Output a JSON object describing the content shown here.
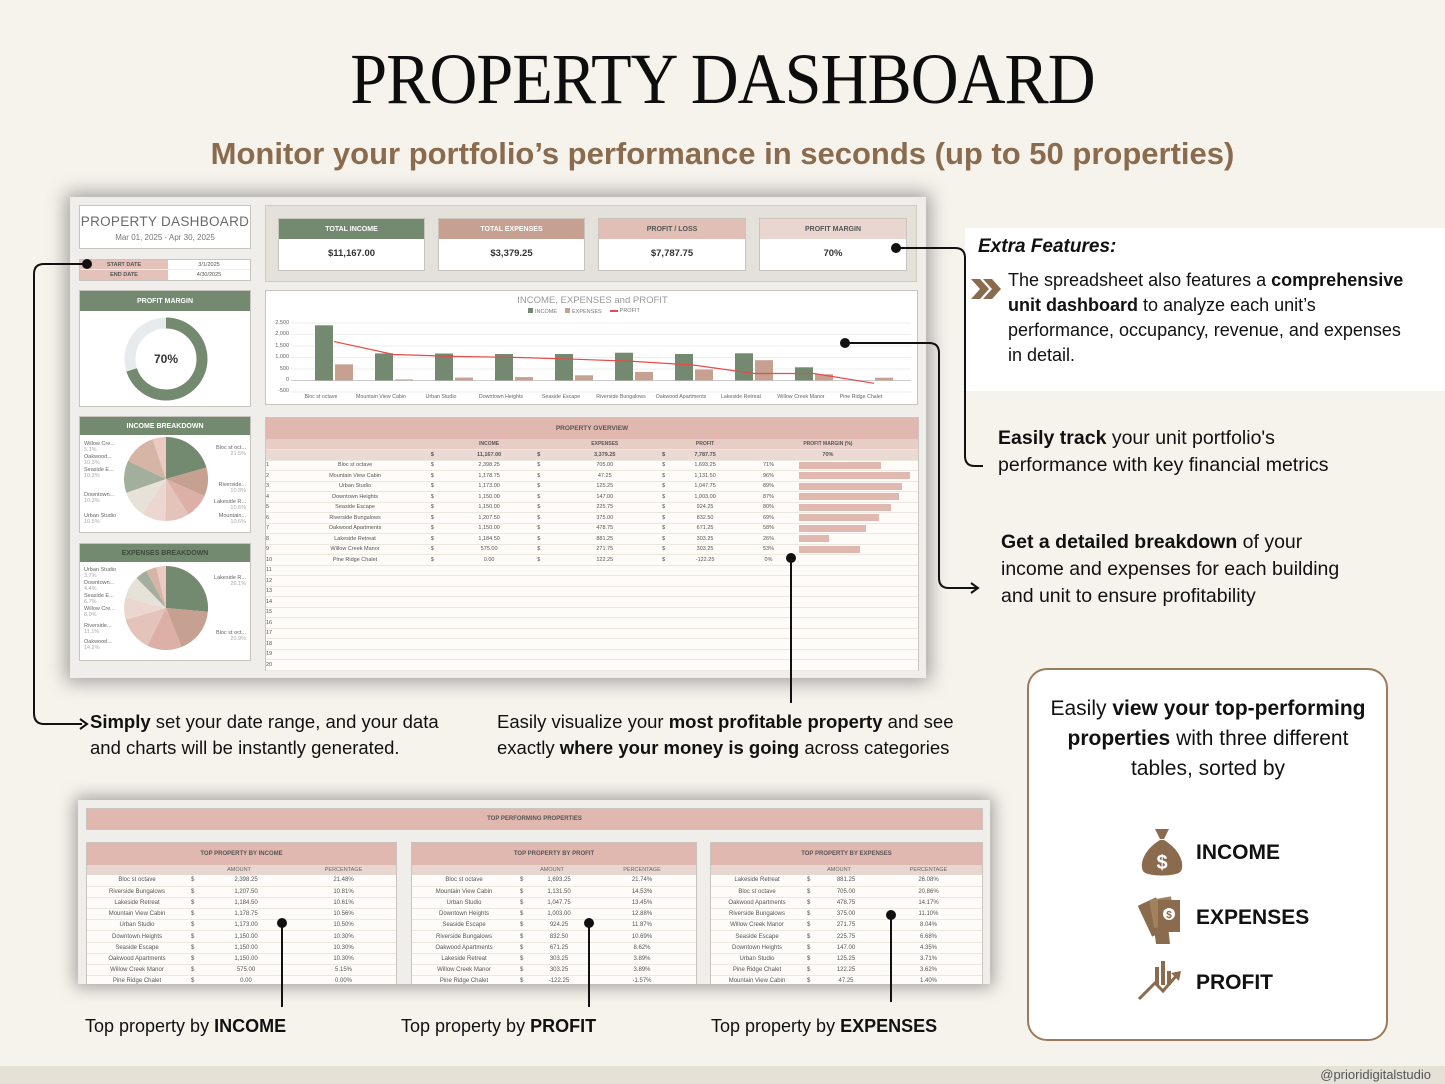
{
  "page": {
    "title": "PROPERTY DASHBOARD",
    "subtitle": "Monitor your portfolio’s performance in seconds (up to 50 properties)",
    "handle": "@prioridigitalstudio"
  },
  "sheet": {
    "title": "PROPERTY DASHBOARD",
    "date_range": "Mar 01, 2025 - Apr 30, 2025",
    "start_label": "START DATE",
    "start_value": "3/1/2025",
    "end_label": "END DATE",
    "end_value": "4/30/2025",
    "kpis": [
      {
        "label": "TOTAL INCOME",
        "value": "$11,167.00",
        "color": "#748a70"
      },
      {
        "label": "TOTAL EXPENSES",
        "value": "$3,379.25",
        "color": "#c6a090"
      },
      {
        "label": "PROFIT / LOSS",
        "value": "$7,787.75",
        "color": "#e2bfb6"
      },
      {
        "label": "PROFIT MARGIN",
        "value": "70%",
        "color": "#ead6d0"
      }
    ],
    "margin_card": {
      "label": "PROFIT MARGIN",
      "value": "70%"
    },
    "income_breakdown": {
      "label": "INCOME BREAKDOWN",
      "slices": [
        {
          "name": "Bloc st oct...",
          "pct": "21.5%"
        },
        {
          "name": "Riverside...",
          "pct": "10.8%"
        },
        {
          "name": "Lakeside R...",
          "pct": "10.6%"
        },
        {
          "name": "Mountain...",
          "pct": "10.6%"
        },
        {
          "name": "Urban Studio",
          "pct": "10.5%"
        },
        {
          "name": "Downtown...",
          "pct": "10.3%"
        },
        {
          "name": "Seaside E...",
          "pct": "10.3%"
        },
        {
          "name": "Oakwood...",
          "pct": "10.3%"
        },
        {
          "name": "Willow Cre...",
          "pct": "5.1%"
        }
      ]
    },
    "expenses_breakdown": {
      "label": "EXPENSES BREAKDOWN",
      "slices": [
        {
          "name": "Lakeside R...",
          "pct": "26.1%"
        },
        {
          "name": "Bloc st oct...",
          "pct": "20.9%"
        },
        {
          "name": "Oakwood...",
          "pct": "14.2%"
        },
        {
          "name": "Riverside...",
          "pct": "11.1%"
        },
        {
          "name": "Willow Cre...",
          "pct": "8.0%"
        },
        {
          "name": "Seaside E...",
          "pct": "6.7%"
        },
        {
          "name": "Downtown...",
          "pct": "4.4%"
        },
        {
          "name": "Urban Studio",
          "pct": "3.7%"
        }
      ]
    },
    "overview": {
      "label": "PROPERTY OVERVIEW",
      "headers": [
        "INCOME",
        "EXPENSES",
        "PROFIT",
        "PROFIT MARGIN (%)"
      ],
      "totals": {
        "income": "11,167.00",
        "expenses": "3,379.25",
        "profit": "7,787.75",
        "margin": "70%"
      },
      "currency": "$",
      "rows": [
        {
          "n": "1",
          "name": "Bloc st octave",
          "income": "2,398.25",
          "expenses": "705.00",
          "profit": "1,693.25",
          "margin": "71%",
          "bar": 71
        },
        {
          "n": "2",
          "name": "Mountain View Cabin",
          "income": "1,178.75",
          "expenses": "47.25",
          "profit": "1,131.50",
          "margin": "96%",
          "bar": 96
        },
        {
          "n": "3",
          "name": "Urban Studio",
          "income": "1,173.00",
          "expenses": "125.25",
          "profit": "1,047.75",
          "margin": "89%",
          "bar": 89
        },
        {
          "n": "4",
          "name": "Downtown Heights",
          "income": "1,150.00",
          "expenses": "147.00",
          "profit": "1,003.00",
          "margin": "87%",
          "bar": 87
        },
        {
          "n": "5",
          "name": "Seaside Escape",
          "income": "1,150.00",
          "expenses": "225.75",
          "profit": "924.25",
          "margin": "80%",
          "bar": 80
        },
        {
          "n": "6",
          "name": "Riverside Bungalows",
          "income": "1,207.50",
          "expenses": "375.00",
          "profit": "832.50",
          "margin": "69%",
          "bar": 69
        },
        {
          "n": "7",
          "name": "Oakwood Apartments",
          "income": "1,150.00",
          "expenses": "478.75",
          "profit": "671.25",
          "margin": "58%",
          "bar": 58
        },
        {
          "n": "8",
          "name": "Lakeside Retreat",
          "income": "1,184.50",
          "expenses": "881.25",
          "profit": "303.25",
          "margin": "26%",
          "bar": 26
        },
        {
          "n": "9",
          "name": "Willow Creek Manor",
          "income": "575.00",
          "expenses": "271.75",
          "profit": "303.25",
          "margin": "53%",
          "bar": 53
        },
        {
          "n": "10",
          "name": "Pine Ridge Chalet",
          "income": "0.00",
          "expenses": "122.25",
          "profit": "-122.25",
          "margin": "0%",
          "bar": 0
        }
      ],
      "empty_rows": [
        "11",
        "12",
        "13",
        "14",
        "15",
        "16",
        "17",
        "18",
        "19",
        "20"
      ]
    }
  },
  "chart_data": {
    "type": "bar",
    "title": "INCOME, EXPENSES and PROFIT",
    "categories": [
      "Bloc st octave",
      "Mountain View Cabin",
      "Urban Studio",
      "Downtown Heights",
      "Seaside Escape",
      "Riverside Bungalows",
      "Oakwood Apartments",
      "Lakeside Retreat",
      "Willow Creek Manor",
      "Pine Ridge Chalet"
    ],
    "series": [
      {
        "name": "INCOME",
        "type": "bar",
        "color": "#748a70",
        "values": [
          2398.25,
          1178.75,
          1173.0,
          1150.0,
          1150.0,
          1207.5,
          1150.0,
          1184.5,
          575.0,
          0.0
        ]
      },
      {
        "name": "EXPENSES",
        "type": "bar",
        "color": "#c6a090",
        "values": [
          705.0,
          47.25,
          125.25,
          147.0,
          225.75,
          375.0,
          478.75,
          881.25,
          271.75,
          122.25
        ]
      },
      {
        "name": "PROFIT",
        "type": "line",
        "color": "#e84a4a",
        "values": [
          1693.25,
          1131.5,
          1047.75,
          1003.0,
          924.25,
          832.5,
          671.25,
          303.25,
          303.25,
          -122.25
        ]
      }
    ],
    "yticks": [
      "2,500",
      "2,000",
      "1,500",
      "1,000",
      "500",
      "0",
      "-500"
    ],
    "ylim": [
      -500,
      2500
    ],
    "legend_position": "top",
    "grid": true
  },
  "top_performing": {
    "label": "TOP PERFORMING PROPERTIES",
    "col_amount": "AMOUNT",
    "col_percent": "PERCENTAGE",
    "tables": [
      {
        "label": "TOP PROPERTY BY INCOME",
        "rows": [
          [
            "Bloc st octave",
            "2,398.25",
            "21.48%"
          ],
          [
            "Riverside Bungalows",
            "1,207.50",
            "10.81%"
          ],
          [
            "Lakeside Retreat",
            "1,184.50",
            "10.61%"
          ],
          [
            "Mountain View Cabin",
            "1,178.75",
            "10.56%"
          ],
          [
            "Urban Studio",
            "1,173.00",
            "10.50%"
          ],
          [
            "Downtown Heights",
            "1,150.00",
            "10.30%"
          ],
          [
            "Seaside Escape",
            "1,150.00",
            "10.30%"
          ],
          [
            "Oakwood Apartments",
            "1,150.00",
            "10.30%"
          ],
          [
            "Willow Creek Manor",
            "575.00",
            "5.15%"
          ],
          [
            "Pine Ridge Chalet",
            "0.00",
            "0.00%"
          ]
        ]
      },
      {
        "label": "TOP PROPERTY BY PROFIT",
        "rows": [
          [
            "Bloc st octave",
            "1,693.25",
            "21.74%"
          ],
          [
            "Mountain View Cabin",
            "1,131.50",
            "14.53%"
          ],
          [
            "Urban Studio",
            "1,047.75",
            "13.45%"
          ],
          [
            "Downtown Heights",
            "1,003.00",
            "12.88%"
          ],
          [
            "Seaside Escape",
            "924.25",
            "11.87%"
          ],
          [
            "Riverside Bungalows",
            "832.50",
            "10.69%"
          ],
          [
            "Oakwood Apartments",
            "671.25",
            "8.62%"
          ],
          [
            "Lakeside Retreat",
            "303.25",
            "3.89%"
          ],
          [
            "Willow Creek Manor",
            "303.25",
            "3.89%"
          ],
          [
            "Pine Ridge Chalet",
            "-122.25",
            "-1.57%"
          ]
        ]
      },
      {
        "label": "TOP PROPERTY BY EXPENSES",
        "rows": [
          [
            "Lakeside Retreat",
            "881.25",
            "26.08%"
          ],
          [
            "Bloc st octave",
            "705.00",
            "20.86%"
          ],
          [
            "Oakwood Apartments",
            "478.75",
            "14.17%"
          ],
          [
            "Riverside Bungalows",
            "375.00",
            "11.10%"
          ],
          [
            "Willow Creek Manor",
            "271.75",
            "8.04%"
          ],
          [
            "Seaside Escape",
            "225.75",
            "6.68%"
          ],
          [
            "Downtown Heights",
            "147.00",
            "4.35%"
          ],
          [
            "Urban Studio",
            "125.25",
            "3.71%"
          ],
          [
            "Pine Ridge Chalet",
            "122.25",
            "3.62%"
          ],
          [
            "Mountain View Cabin",
            "47.25",
            "1.40%"
          ]
        ]
      }
    ]
  },
  "callouts": {
    "extra_title": "Extra Features:",
    "extra_pre": "The spreadsheet also features a ",
    "extra_bold": "comprehensive unit dashboard",
    "extra_post": " to analyze each unit’s performance, occupancy, revenue, and expenses in detail.",
    "track_bold": "Easily track",
    "track_rest": " your unit portfolio's performance with key financial metrics",
    "breakdown_bold": "Get a detailed breakdown",
    "breakdown_rest": " of your income and expenses for each building and unit to ensure profitability",
    "date_bold": "Simply",
    "date_rest": " set your date range, and your data and charts will be instantly generated.",
    "viz_pre": "Easily visualize your ",
    "viz_bold1": "most profitable property",
    "viz_mid": " and see exactly ",
    "viz_bold2": "where your money is going",
    "viz_post": " across categories",
    "top_income_pre": "Top property by ",
    "top_income_bold": "INCOME",
    "top_profit_pre": "Top property by ",
    "top_profit_bold": "PROFIT",
    "top_expenses_pre": "Top property by ",
    "top_expenses_bold": "EXPENSES"
  },
  "feature_box": {
    "pre": "Easily ",
    "bold": "view your top-performing properties",
    "post": " with three different tables, sorted by",
    "items": [
      {
        "icon": "money-bag-icon",
        "label": "INCOME"
      },
      {
        "icon": "cash-hand-icon",
        "label": "EXPENSES"
      },
      {
        "icon": "growth-chart-icon",
        "label": "PROFIT"
      }
    ]
  }
}
